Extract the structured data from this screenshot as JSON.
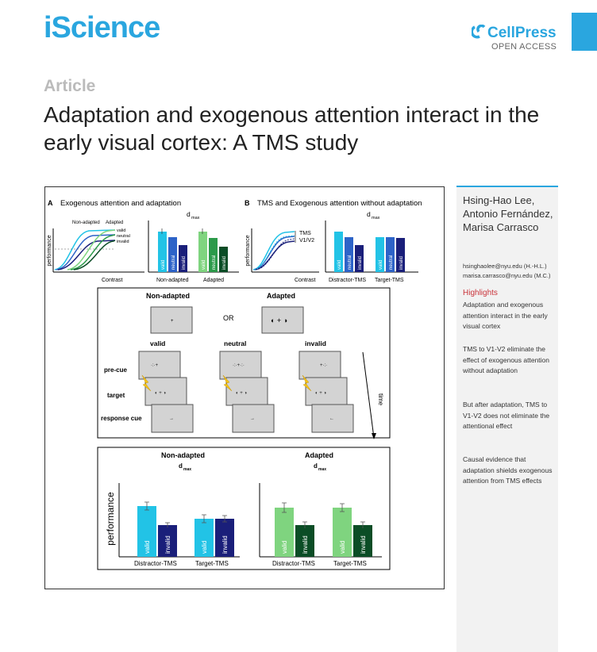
{
  "header": {
    "journal": "iScience",
    "publisher": "CellPress",
    "access": "OPEN ACCESS"
  },
  "article_label": "Article",
  "title": "Adaptation and exogenous attention interact in the early visual cortex: A TMS study",
  "sidebar": {
    "authors": "Hsing-Hao Lee, Antonio Fernández, Marisa Carrasco",
    "emails": [
      "hsinghaolee@nyu.edu (H.-H.L.)",
      "marisa.carrasco@nyu.edu (M.C.)"
    ],
    "highlights_heading": "Highlights",
    "highlights": [
      "Adaptation and exogenous attention interact in the early visual cortex",
      "TMS to V1-V2 eliminate the effect of exogenous attention without adaptation",
      "But after adaptation, TMS to V1-V2 does not eliminate the attentional effect",
      "Causal evidence that adaptation shields exogenous attention from TMS effects"
    ]
  },
  "figure": {
    "panelA": {
      "letter": "A",
      "title": "Exogenous attention and adaptation",
      "curve_labels": [
        "Non-adapted",
        "Adapted"
      ],
      "legend": [
        "valid",
        "neutral",
        "invalid"
      ],
      "ylabel": "performance",
      "xlabel": "Contrast",
      "dmax": "d",
      "dmax_sub": "max",
      "groups": [
        "Non-adapted",
        "Adapted"
      ],
      "bar_labels": [
        "valid",
        "neutral",
        "invalid"
      ]
    },
    "panelB": {
      "letter": "B",
      "title": "TMS and Exogenous attention without adaptation",
      "tms_labels": [
        "TMS",
        "V1/V2"
      ],
      "ylabel": "performance",
      "xlabel": "Contrast",
      "dmax": "d",
      "dmax_sub": "max",
      "groups": [
        "Distractor-TMS",
        "Target-TMS"
      ],
      "bar_labels": [
        "valid",
        "neutral",
        "invalid"
      ]
    },
    "trial": {
      "conditions": [
        "Non-adapted",
        "OR",
        "Adapted"
      ],
      "columns": [
        "valid",
        "neutral",
        "invalid"
      ],
      "rows": [
        "pre-cue",
        "target",
        "response cue"
      ],
      "time": "time"
    },
    "results": {
      "left_title": "Non-adapted",
      "right_title": "Adapted",
      "dmax": "d",
      "dmax_sub": "max",
      "ylabel": "performance",
      "groups": [
        "Distractor-TMS",
        "Target-TMS"
      ],
      "bar_labels": [
        "valid",
        "invalid"
      ]
    }
  },
  "colors": {
    "brand": "#2aa6df",
    "valid": "#22c3e6",
    "neutral": "#2d63c8",
    "invalid": "#1a1f7a",
    "adapt_valid": "#7fd47f",
    "adapt_neutral": "#2c9a4a",
    "adapt_invalid": "#0b4d26"
  }
}
